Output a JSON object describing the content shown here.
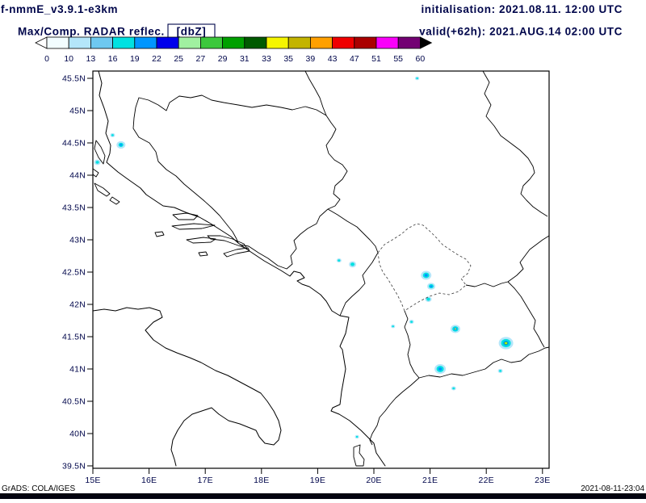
{
  "header": {
    "model_version": "f-nmmE_v3.9.1-e3km",
    "product_title": "Max/Comp. RADAR reflec.",
    "units_label": "[dbZ]",
    "initialisation": "initialisation: 2021.08.11. 12:00 UTC",
    "valid": "valid(+62h): 2021.AUG.14 02:00 UTC"
  },
  "footer": {
    "credit": "GrADS: COLA/IGES",
    "timestamp": "2021-08-11-23:04"
  },
  "colorbar": {
    "unit": "dbZ",
    "tick_labels": [
      "0",
      "10",
      "13",
      "16",
      "19",
      "22",
      "25",
      "27",
      "29",
      "31",
      "33",
      "35",
      "39",
      "43",
      "47",
      "51",
      "55",
      "60"
    ],
    "segment_colors": [
      "#f2fdff",
      "#b4e6fa",
      "#6ec8f0",
      "#00e1e1",
      "#0096ff",
      "#0000eb",
      "#a0f0a0",
      "#3cc83c",
      "#00a000",
      "#005a00",
      "#f5f500",
      "#c3b400",
      "#ffa000",
      "#f00000",
      "#aa0000",
      "#fa00fa",
      "#730073"
    ],
    "left_arrow_color": "#ffffff",
    "right_arrow_color": "#000000"
  },
  "map": {
    "lat_labels": [
      "45.5N",
      "45N",
      "44.5N",
      "44N",
      "43.5N",
      "43N",
      "42.5N",
      "42N",
      "41.5N",
      "41N",
      "40.5N",
      "40N",
      "39.5N"
    ],
    "lon_labels": [
      "15E",
      "16E",
      "17E",
      "18E",
      "19E",
      "20E",
      "21E",
      "22E",
      "23E"
    ],
    "lat_range": [
      39.5,
      45.5
    ],
    "lon_range": [
      15,
      23
    ],
    "radar_echoes": [
      {
        "lon": 15.5,
        "lat": 44.47,
        "rings": [
          [
            "#b4e6fa",
            5.5
          ],
          [
            "#00e1e1",
            3
          ],
          [
            "#0096ff",
            1.4
          ]
        ]
      },
      {
        "lon": 15.35,
        "lat": 44.62,
        "rings": [
          [
            "#b4e6fa",
            3
          ],
          [
            "#00e1e1",
            1.5
          ]
        ]
      },
      {
        "lon": 15.08,
        "lat": 44.2,
        "rings": [
          [
            "#b4e6fa",
            4
          ],
          [
            "#00e1e1",
            2
          ]
        ]
      },
      {
        "lon": 19.38,
        "lat": 42.68,
        "rings": [
          [
            "#b4e6fa",
            3
          ],
          [
            "#00e1e1",
            1.6
          ]
        ]
      },
      {
        "lon": 19.62,
        "lat": 42.62,
        "rings": [
          [
            "#b4e6fa",
            4.5
          ],
          [
            "#00e1e1",
            2.5
          ]
        ]
      },
      {
        "lon": 20.93,
        "lat": 42.45,
        "rings": [
          [
            "#b4e6fa",
            6.5
          ],
          [
            "#00e1e1",
            4
          ],
          [
            "#0096ff",
            2
          ]
        ]
      },
      {
        "lon": 21.02,
        "lat": 42.28,
        "rings": [
          [
            "#b4e6fa",
            5
          ],
          [
            "#00e1e1",
            3
          ],
          [
            "#0096ff",
            1.5
          ]
        ]
      },
      {
        "lon": 20.97,
        "lat": 42.08,
        "rings": [
          [
            "#b4e6fa",
            4
          ],
          [
            "#00e1e1",
            2.2
          ]
        ]
      },
      {
        "lon": 20.67,
        "lat": 41.73,
        "rings": [
          [
            "#b4e6fa",
            3
          ],
          [
            "#00e1e1",
            1.5
          ]
        ]
      },
      {
        "lon": 20.34,
        "lat": 41.66,
        "rings": [
          [
            "#b4e6fa",
            2.6
          ],
          [
            "#00e1e1",
            1.3
          ]
        ]
      },
      {
        "lon": 21.45,
        "lat": 41.62,
        "rings": [
          [
            "#b4e6fa",
            6
          ],
          [
            "#00e1e1",
            3.8
          ],
          [
            "#0096ff",
            2
          ],
          [
            "#f5f500",
            1
          ]
        ]
      },
      {
        "lon": 22.35,
        "lat": 41.4,
        "rings": [
          [
            "#b4e6fa",
            9
          ],
          [
            "#00e1e1",
            6
          ],
          [
            "#0096ff",
            3.5
          ],
          [
            "#3cc83c",
            2.2
          ],
          [
            "#f5f500",
            1.2
          ]
        ]
      },
      {
        "lon": 21.18,
        "lat": 41.0,
        "rings": [
          [
            "#b4e6fa",
            7
          ],
          [
            "#00e1e1",
            4.5
          ],
          [
            "#0096ff",
            2.2
          ]
        ]
      },
      {
        "lon": 21.42,
        "lat": 40.7,
        "rings": [
          [
            "#b4e6fa",
            3
          ],
          [
            "#00e1e1",
            1.5
          ]
        ]
      },
      {
        "lon": 22.25,
        "lat": 40.97,
        "rings": [
          [
            "#b4e6fa",
            3
          ],
          [
            "#00e1e1",
            1.5
          ]
        ]
      },
      {
        "lon": 19.7,
        "lat": 39.95,
        "rings": [
          [
            "#b4e6fa",
            2.6
          ],
          [
            "#00e1e1",
            1.3
          ]
        ]
      },
      {
        "lon": 20.77,
        "lat": 45.5,
        "rings": [
          [
            "#b4e6fa",
            2.6
          ],
          [
            "#00e1e1",
            1.3
          ]
        ]
      }
    ]
  }
}
